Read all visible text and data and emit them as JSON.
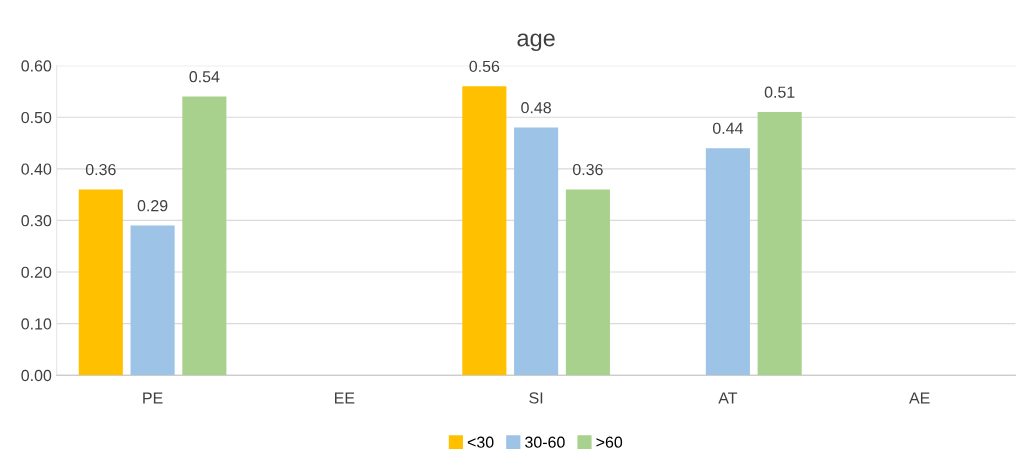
{
  "chart_data": {
    "type": "bar",
    "title": "age",
    "categories": [
      "PE",
      "EE",
      "SI",
      "AT",
      "AE"
    ],
    "series": [
      {
        "name": "<30",
        "color": "#ffc000",
        "values": [
          0.36,
          null,
          0.56,
          null,
          null
        ]
      },
      {
        "name": "30-60",
        "color": "#9dc3e6",
        "values": [
          0.29,
          null,
          0.48,
          0.44,
          null
        ]
      },
      {
        "name": ">60",
        "color": "#a9d18e",
        "values": [
          0.54,
          null,
          0.36,
          0.51,
          null
        ]
      }
    ],
    "ylim": [
      0,
      0.6
    ],
    "yticks": [
      {
        "value": 0,
        "label": "0.00"
      },
      {
        "value": 0.1,
        "label": "0.10"
      },
      {
        "value": 0.2,
        "label": "0.20"
      },
      {
        "value": 0.3,
        "label": "0.30"
      },
      {
        "value": 0.4,
        "label": "0.40"
      },
      {
        "value": 0.5,
        "label": "0.50"
      },
      {
        "value": 0.6,
        "label": "0.60"
      }
    ],
    "grid": "y",
    "legend": "bottom",
    "data_labels": true
  }
}
